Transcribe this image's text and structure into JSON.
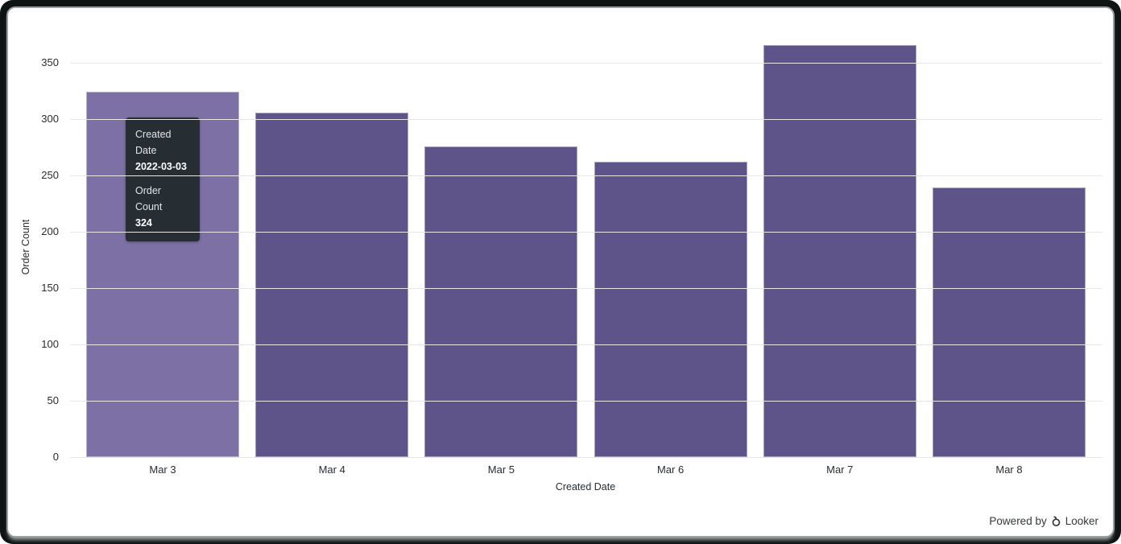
{
  "window": {
    "frame_color": "#0e1313",
    "panel_color": "#ffffff"
  },
  "chart_data": {
    "type": "bar",
    "categories": [
      "Mar 3",
      "Mar 4",
      "Mar 5",
      "Mar 6",
      "Mar 7",
      "Mar 8"
    ],
    "values": [
      324,
      306,
      276,
      262,
      366,
      239
    ],
    "title": "",
    "xlabel": "Created Date",
    "ylabel": "Order Count",
    "ylim": [
      0,
      350
    ],
    "yticks": [
      0,
      50,
      100,
      150,
      200,
      250,
      300,
      350
    ],
    "grid": "horizontal-only",
    "legend": "none",
    "bar_color": "#5f548a",
    "bar_highlight_color": "#7d70a4",
    "highlighted_index": 0,
    "gridline_color": "#e6e6e6",
    "tick_label_color": "#262d33"
  },
  "tooltip": {
    "field1_label": "Created Date",
    "field1_value": "2022-03-03",
    "field2_label": "Order Count",
    "field2_value": "324",
    "background": "#262d33"
  },
  "footer": {
    "powered_by": "Powered by",
    "brand": "Looker"
  }
}
